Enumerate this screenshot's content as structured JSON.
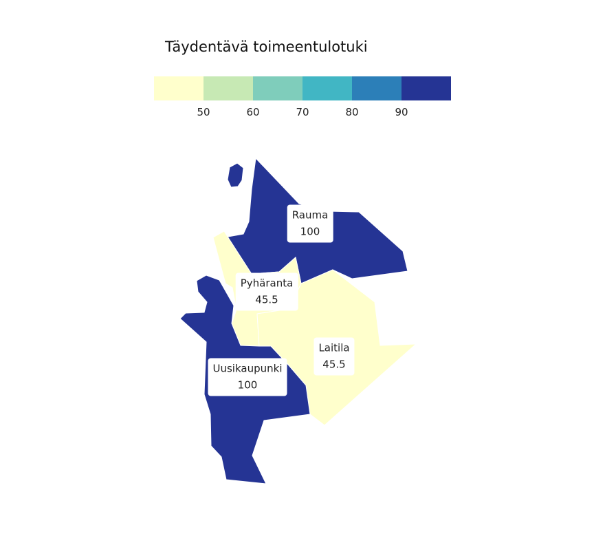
{
  "legend": {
    "title": "Täydentävä toimeentulotuki",
    "colors": [
      "#ffffcc",
      "#c7e9b4",
      "#7fcdbb",
      "#41b6c4",
      "#2c7fb8",
      "#253494"
    ],
    "ticks": [
      "50",
      "60",
      "70",
      "80",
      "90"
    ]
  },
  "regions": [
    {
      "name": "Rauma",
      "value": "100",
      "color": "#253494"
    },
    {
      "name": "Pyhäranta",
      "value": "45.5",
      "color": "#ffffcc"
    },
    {
      "name": "Laitila",
      "value": "45.5",
      "color": "#ffffcc"
    },
    {
      "name": "Uusikaupunki",
      "value": "100",
      "color": "#253494"
    }
  ]
}
